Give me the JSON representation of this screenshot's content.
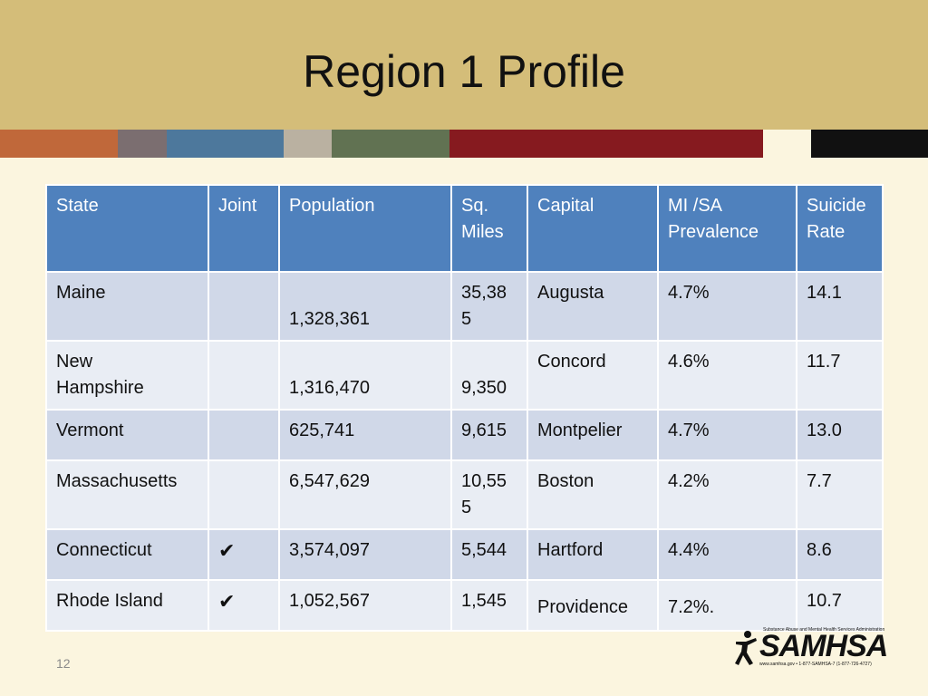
{
  "slide": {
    "title": "Region 1 Profile",
    "page_number": "12"
  },
  "colors": {
    "header_band": "#d4bd79",
    "background": "#fbf5df",
    "table_header": "#4f81bd",
    "row_dark": "#d0d8e8",
    "row_light": "#e9edf4",
    "stripes": [
      "#c0683a",
      "#7b6e70",
      "#4d789c",
      "#bab1a1",
      "#617252",
      "#861a1f",
      "#111111"
    ]
  },
  "table": {
    "headers": {
      "state": "State",
      "joint": "Joint",
      "population": "Population",
      "sq_miles_1": "Sq.",
      "sq_miles_2": "Miles",
      "capital": "Capital",
      "prevalence_1": "MI /SA",
      "prevalence_2": "Prevalence",
      "suicide_1": "Suicide",
      "suicide_2": "Rate"
    },
    "rows": [
      {
        "state": "Maine",
        "joint": "",
        "population": "1,328,361",
        "sq_miles_1": "35,38",
        "sq_miles_2": "5",
        "capital": "Augusta",
        "prevalence": "4.7%",
        "suicide_rate": "14.1"
      },
      {
        "state_1": "New",
        "state_2": "Hampshire",
        "joint": "",
        "population": "1,316,470",
        "sq_miles": "9,350",
        "capital": "Concord",
        "prevalence": "4.6%",
        "suicide_rate": "11.7"
      },
      {
        "state": "Vermont",
        "joint": "",
        "population": "625,741",
        "sq_miles": "9,615",
        "capital": "Montpelier",
        "prevalence": "4.7%",
        "suicide_rate": "13.0"
      },
      {
        "state": "Massachusetts",
        "joint": "",
        "population": "6,547,629",
        "sq_miles_1": "10,55",
        "sq_miles_2": "5",
        "capital": "Boston",
        "prevalence": "4.2%",
        "suicide_rate": "7.7"
      },
      {
        "state": "Connecticut",
        "joint": "✔",
        "population": "3,574,097",
        "sq_miles": "5,544",
        "capital": "Hartford",
        "prevalence": "4.4%",
        "suicide_rate": "8.6"
      },
      {
        "state": "Rhode Island",
        "joint": "✔",
        "population": "1,052,567",
        "sq_miles": "1,545",
        "capital": "Providence",
        "prevalence": "7.2%.",
        "suicide_rate": "10.7"
      }
    ]
  },
  "logo": {
    "name": "SAMHSA",
    "tagline": "Substance Abuse and Mental Health Services Administration",
    "contact": "www.samhsa.gov • 1-877-SAMHSA-7 (1-877-726-4727)",
    "icon": "person-figure-icon"
  }
}
